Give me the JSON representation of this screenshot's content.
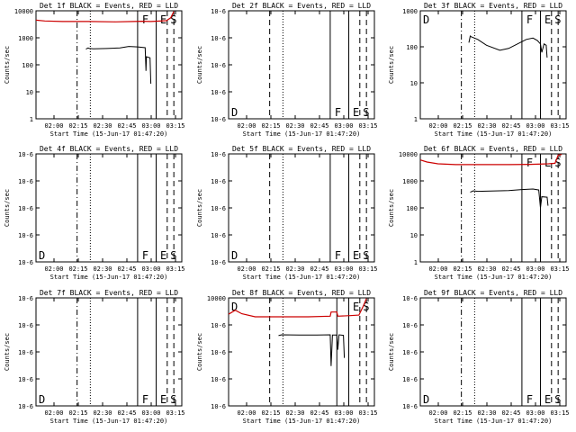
{
  "title_suffix": " BLACK = Events, RED = LLD",
  "ylabel": "Counts/sec",
  "xlabel": "Start Time (15-Jun-17 01:47:20)",
  "x_ticks": [
    "02:00",
    "02:15",
    "02:30",
    "02:45",
    "03:00",
    "03:15"
  ],
  "colors": {
    "events": "#000000",
    "lld": "#cc0000",
    "axes": "#000000"
  },
  "chart_data": [
    {
      "type": "line",
      "title": "Det 1f",
      "yaxis": [
        "10000",
        "1000",
        "100",
        "10",
        "1"
      ],
      "ylim": [
        1,
        10000
      ],
      "events": [
        [
          1.13,
          380
        ],
        [
          1.18,
          420
        ],
        [
          1.21,
          400
        ],
        [
          1.3,
          390
        ],
        [
          1.6,
          400
        ],
        [
          1.9,
          420
        ],
        [
          2.1,
          480
        ],
        [
          2.3,
          460
        ],
        [
          2.47,
          430
        ],
        [
          2.49,
          60
        ],
        [
          2.5,
          200
        ],
        [
          2.58,
          180
        ],
        [
          2.6,
          20
        ]
      ],
      "lld": [
        [
          0.0,
          4500
        ],
        [
          0.2,
          4200
        ],
        [
          0.6,
          4000
        ],
        [
          1.2,
          4000
        ],
        [
          1.8,
          3900
        ],
        [
          2.2,
          4000
        ],
        [
          2.4,
          4100
        ],
        [
          2.6,
          4000
        ],
        [
          2.95,
          4300
        ],
        [
          3.05,
          5500
        ],
        [
          3.12,
          9500
        ]
      ],
      "lines": [
        {
          "x": 0.93,
          "s": "dashdot"
        },
        {
          "x": 1.23,
          "s": "dot"
        },
        {
          "x": 2.3,
          "s": "solid"
        },
        {
          "x": 2.72,
          "s": "solid"
        },
        {
          "x": 2.97,
          "s": "dash"
        },
        {
          "x": 3.12,
          "s": "dash"
        }
      ],
      "letters": [
        {
          "t": "F",
          "x": 2.36
        },
        {
          "t": "E",
          "x": 2.77
        },
        {
          "t": "S",
          "x": 3.0
        }
      ],
      "letter_row": "top"
    },
    {
      "type": "line",
      "title": "Det 2f",
      "yaxis": [
        "10-6",
        "10-6",
        "10-6",
        "10-6",
        "10-6"
      ],
      "ylim": [
        1,
        10000
      ],
      "events": [],
      "lld": [],
      "lines": [
        {
          "x": 0.93,
          "s": "dash"
        },
        {
          "x": 1.23,
          "s": "dot"
        },
        {
          "x": 2.3,
          "s": "solid"
        },
        {
          "x": 2.72,
          "s": "solid"
        },
        {
          "x": 2.97,
          "s": "dash"
        },
        {
          "x": 3.12,
          "s": "dash"
        }
      ],
      "letters": [
        {
          "t": "D",
          "x": 0.02
        },
        {
          "t": "F",
          "x": 2.36
        },
        {
          "t": "E",
          "x": 2.77
        },
        {
          "t": "S",
          "x": 3.0
        }
      ],
      "letter_row": "bottom"
    },
    {
      "type": "line",
      "title": "Det 3f",
      "yaxis": [
        "1000",
        "100",
        "10",
        "1"
      ],
      "ylim": [
        1,
        1000
      ],
      "events": [
        [
          1.1,
          130
        ],
        [
          1.13,
          200
        ],
        [
          1.15,
          190
        ],
        [
          1.3,
          160
        ],
        [
          1.5,
          110
        ],
        [
          1.8,
          80
        ],
        [
          2.0,
          90
        ],
        [
          2.2,
          120
        ],
        [
          2.4,
          160
        ],
        [
          2.55,
          175
        ],
        [
          2.65,
          150
        ],
        [
          2.72,
          120
        ],
        [
          2.75,
          70
        ],
        [
          2.8,
          120
        ],
        [
          2.85,
          110
        ],
        [
          2.87,
          50
        ]
      ],
      "lld": [],
      "lines": [
        {
          "x": 0.93,
          "s": "dashdot"
        },
        {
          "x": 1.23,
          "s": "dot"
        },
        {
          "x": 2.3,
          "s": "solid"
        },
        {
          "x": 2.72,
          "s": "solid"
        },
        {
          "x": 2.97,
          "s": "dash"
        },
        {
          "x": 3.12,
          "s": "dash"
        }
      ],
      "letters": [
        {
          "t": "D",
          "x": 0.02
        },
        {
          "t": "F",
          "x": 2.36
        },
        {
          "t": "E",
          "x": 2.77
        },
        {
          "t": "S",
          "x": 3.0
        }
      ],
      "letter_row": "top"
    },
    {
      "type": "line",
      "title": "Det 4f",
      "yaxis": [
        "10-6",
        "10-6",
        "10-6",
        "10-6",
        "10-6"
      ],
      "ylim": [
        1,
        10000
      ],
      "events": [],
      "lld": [],
      "lines": [
        {
          "x": 0.93,
          "s": "dashdot"
        },
        {
          "x": 1.23,
          "s": "dot"
        },
        {
          "x": 2.3,
          "s": "solid"
        },
        {
          "x": 2.72,
          "s": "solid"
        },
        {
          "x": 2.97,
          "s": "dash"
        },
        {
          "x": 3.12,
          "s": "dash"
        }
      ],
      "letters": [
        {
          "t": "D",
          "x": 0.02
        },
        {
          "t": "F",
          "x": 2.36
        },
        {
          "t": "E",
          "x": 2.77
        },
        {
          "t": "S",
          "x": 3.0
        }
      ],
      "letter_row": "bottom"
    },
    {
      "type": "line",
      "title": "Det 5f",
      "yaxis": [
        "10-6",
        "10-6",
        "10-6",
        "10-6",
        "10-6"
      ],
      "ylim": [
        1,
        10000
      ],
      "events": [],
      "lld": [],
      "lines": [
        {
          "x": 0.93,
          "s": "dash"
        },
        {
          "x": 1.23,
          "s": "dot"
        },
        {
          "x": 2.3,
          "s": "solid"
        },
        {
          "x": 2.72,
          "s": "solid"
        },
        {
          "x": 2.97,
          "s": "dash"
        },
        {
          "x": 3.12,
          "s": "dash"
        }
      ],
      "letters": [
        {
          "t": "D",
          "x": 0.02
        },
        {
          "t": "F",
          "x": 2.36
        },
        {
          "t": "E",
          "x": 2.77
        },
        {
          "t": "S",
          "x": 3.0
        }
      ],
      "letter_row": "bottom"
    },
    {
      "type": "line",
      "title": "Det 6f",
      "yaxis": [
        "10000",
        "1000",
        "100",
        "10",
        "1"
      ],
      "ylim": [
        1,
        10000
      ],
      "events": [
        [
          1.13,
          380
        ],
        [
          1.2,
          430
        ],
        [
          1.3,
          410
        ],
        [
          1.6,
          420
        ],
        [
          2.0,
          440
        ],
        [
          2.3,
          480
        ],
        [
          2.55,
          500
        ],
        [
          2.68,
          460
        ],
        [
          2.72,
          100
        ],
        [
          2.75,
          260
        ],
        [
          2.87,
          250
        ],
        [
          2.89,
          120
        ]
      ],
      "lld": [
        [
          0.0,
          6000
        ],
        [
          0.15,
          5000
        ],
        [
          0.4,
          4300
        ],
        [
          0.8,
          4000
        ],
        [
          1.4,
          4000
        ],
        [
          2.0,
          4000
        ],
        [
          2.5,
          4100
        ],
        [
          2.9,
          4300
        ],
        [
          3.05,
          4500
        ],
        [
          3.12,
          9000
        ],
        [
          3.2,
          9500
        ]
      ],
      "lines": [
        {
          "x": 0.93,
          "s": "dashdot"
        },
        {
          "x": 1.23,
          "s": "dot"
        },
        {
          "x": 2.3,
          "s": "solid"
        },
        {
          "x": 2.72,
          "s": "solid"
        },
        {
          "x": 2.97,
          "s": "dash"
        },
        {
          "x": 3.12,
          "s": "dash"
        }
      ],
      "letters": [
        {
          "t": "F",
          "x": 2.36
        },
        {
          "t": "L",
          "x": 2.77
        },
        {
          "t": "S",
          "x": 3.0
        }
      ],
      "letter_row": "top"
    },
    {
      "type": "line",
      "title": "Det 7f",
      "yaxis": [
        "10-6",
        "10-6",
        "10-6",
        "10-6",
        "10-6"
      ],
      "ylim": [
        1,
        10000
      ],
      "events": [],
      "lld": [],
      "lines": [
        {
          "x": 0.93,
          "s": "dashdot"
        },
        {
          "x": 1.23,
          "s": "dot"
        },
        {
          "x": 2.3,
          "s": "solid"
        },
        {
          "x": 2.72,
          "s": "solid"
        },
        {
          "x": 2.97,
          "s": "dash"
        },
        {
          "x": 3.12,
          "s": "dash"
        }
      ],
      "letters": [
        {
          "t": "D",
          "x": 0.02
        },
        {
          "t": "F",
          "x": 2.36
        },
        {
          "t": "E",
          "x": 2.77
        },
        {
          "t": "S",
          "x": 3.0
        }
      ],
      "letter_row": "bottom"
    },
    {
      "type": "line",
      "title": "Det 8f",
      "yaxis": [
        "10000",
        "10-6",
        "10-6",
        "10-6",
        "10-6"
      ],
      "ylim": [
        1,
        10000
      ],
      "events": [
        [
          1.13,
          400
        ],
        [
          1.2,
          430
        ],
        [
          1.6,
          420
        ],
        [
          2.0,
          420
        ],
        [
          2.3,
          430
        ],
        [
          2.32,
          30
        ],
        [
          2.35,
          420
        ],
        [
          2.45,
          420
        ],
        [
          2.47,
          120
        ],
        [
          2.5,
          430
        ],
        [
          2.6,
          410
        ],
        [
          2.62,
          60
        ]
      ],
      "lld": [
        [
          0.0,
          2500
        ],
        [
          0.15,
          3500
        ],
        [
          0.3,
          2600
        ],
        [
          0.6,
          2000
        ],
        [
          1.2,
          2000
        ],
        [
          1.8,
          2000
        ],
        [
          2.3,
          2100
        ],
        [
          2.32,
          3000
        ],
        [
          2.45,
          3000
        ],
        [
          2.47,
          2100
        ],
        [
          2.75,
          2200
        ],
        [
          2.95,
          2300
        ],
        [
          3.05,
          5000
        ],
        [
          3.12,
          9500
        ]
      ],
      "lines": [
        {
          "x": 0.93,
          "s": "dash"
        },
        {
          "x": 1.23,
          "s": "dot"
        },
        {
          "x": 2.45,
          "s": "solid"
        },
        {
          "x": 2.72,
          "s": "solid"
        },
        {
          "x": 2.97,
          "s": "dash"
        },
        {
          "x": 3.12,
          "s": "dash"
        }
      ],
      "letters": [
        {
          "t": "D",
          "x": 0.02
        },
        {
          "t": "E",
          "x": 2.77
        },
        {
          "t": "S",
          "x": 3.0
        }
      ],
      "letter_row": "top"
    },
    {
      "type": "line",
      "title": "Det 9f",
      "yaxis": [
        "10-6",
        "10-6",
        "10-6",
        "10-6",
        "10-6"
      ],
      "ylim": [
        1,
        10000
      ],
      "events": [],
      "lld": [],
      "lines": [
        {
          "x": 0.93,
          "s": "dashdot"
        },
        {
          "x": 1.23,
          "s": "dot"
        },
        {
          "x": 2.3,
          "s": "solid"
        },
        {
          "x": 2.72,
          "s": "solid"
        },
        {
          "x": 2.97,
          "s": "dash"
        },
        {
          "x": 3.12,
          "s": "dash"
        }
      ],
      "letters": [
        {
          "t": "D",
          "x": 0.02
        },
        {
          "t": "F",
          "x": 2.36
        },
        {
          "t": "E",
          "x": 2.77
        },
        {
          "t": "S",
          "x": 3.0
        }
      ],
      "letter_row": "bottom"
    }
  ]
}
